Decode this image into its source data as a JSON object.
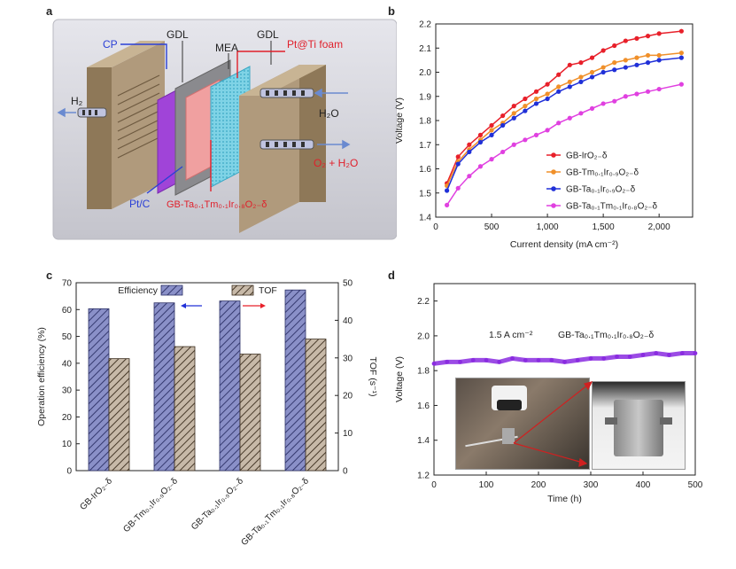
{
  "panels": {
    "a": {
      "letter": "a",
      "labels": {
        "gdl_left": "GDL",
        "mea": "MEA",
        "gdl_right": "GDL",
        "cp": "CP",
        "pt_ti_foam": "Pt@Ti foam",
        "h2": "H₂",
        "h2o": "H₂O",
        "o2_h2o": "O₂ + H₂O",
        "ptc": "Pt/C",
        "catalyst": "GB-Ta₀.₁Tm₀.₁Ir₀.₈O₂₋δ"
      },
      "colors": {
        "background": "#d4d4dc",
        "cp": "#2a3fd6",
        "pt_foam": "#e01f2a"
      }
    },
    "b": {
      "letter": "b"
    },
    "c": {
      "letter": "c"
    },
    "d": {
      "letter": "d",
      "annotation_current": "1.5 A cm⁻²",
      "annotation_catalyst": "GB-Ta₀.₁Tm₀.₁Ir₀.₈O₂₋δ"
    }
  },
  "chart_data": [
    {
      "id": "b",
      "type": "line",
      "xlabel": "Current density (mA cm⁻²)",
      "ylabel": "Voltage (V)",
      "xlim": [
        0,
        2300
      ],
      "ylim": [
        1.4,
        2.2
      ],
      "xticks": [
        0,
        500,
        1000,
        1500,
        2000
      ],
      "xtick_labels": [
        "0",
        "500",
        "1,000",
        "1,500",
        "2,000"
      ],
      "yticks": [
        1.4,
        1.5,
        1.6,
        1.7,
        1.8,
        1.9,
        2.0,
        2.1,
        2.2
      ],
      "ytick_labels": [
        "1.4",
        "1.5",
        "1.6",
        "1.7",
        "1.8",
        "1.9",
        "2.0",
        "2.1",
        "2.2"
      ],
      "legend_position": "bottom-right",
      "x": [
        100,
        200,
        300,
        400,
        500,
        600,
        700,
        800,
        900,
        1000,
        1100,
        1200,
        1300,
        1400,
        1500,
        1600,
        1700,
        1800,
        1900,
        2000,
        2200
      ],
      "series": [
        {
          "name": "GB-IrO₂₋δ",
          "color": "#e8202a",
          "values": [
            1.54,
            1.65,
            1.7,
            1.74,
            1.78,
            1.82,
            1.86,
            1.89,
            1.92,
            1.95,
            1.99,
            2.03,
            2.04,
            2.06,
            2.09,
            2.11,
            2.13,
            2.14,
            2.15,
            2.16,
            2.17
          ]
        },
        {
          "name": "GB-Tm₀.₁Ir₀.₉O₂₋δ",
          "color": "#f0902a",
          "values": [
            1.53,
            1.63,
            1.68,
            1.72,
            1.76,
            1.79,
            1.83,
            1.86,
            1.89,
            1.91,
            1.94,
            1.96,
            1.98,
            2.0,
            2.02,
            2.04,
            2.05,
            2.06,
            2.07,
            2.07,
            2.08
          ]
        },
        {
          "name": "GB-Ta₀.₁Ir₀.₉O₂₋δ",
          "color": "#2030d8",
          "values": [
            1.51,
            1.62,
            1.67,
            1.71,
            1.74,
            1.78,
            1.81,
            1.84,
            1.87,
            1.89,
            1.92,
            1.94,
            1.96,
            1.98,
            2.0,
            2.01,
            2.02,
            2.03,
            2.04,
            2.05,
            2.06
          ]
        },
        {
          "name": "GB-Ta₀.₁Tm₀.₁Ir₀.₈O₂₋δ",
          "color": "#e040e0",
          "values": [
            1.45,
            1.52,
            1.57,
            1.61,
            1.64,
            1.67,
            1.7,
            1.72,
            1.74,
            1.76,
            1.79,
            1.81,
            1.83,
            1.85,
            1.87,
            1.88,
            1.9,
            1.91,
            1.92,
            1.93,
            1.95
          ]
        }
      ]
    },
    {
      "id": "c",
      "type": "bar",
      "ylabel": "Operation efficiency (%)",
      "y2label": "TOF (s⁻¹)",
      "ylim": [
        0,
        70
      ],
      "y2lim": [
        0,
        50
      ],
      "yticks": [
        0,
        10,
        20,
        30,
        40,
        50,
        60,
        70
      ],
      "y2ticks": [
        0,
        10,
        20,
        30,
        40,
        50
      ],
      "categories": [
        "GB-IrO₂₋δ",
        "GB-Tm₀.₁Ir₀.₉O₂₋δ",
        "GB-Ta₀.₁Ir₀.₉O₂₋δ",
        "GB-Ta₀.₁Tm₀.₁Ir₀.₈O₂₋δ"
      ],
      "legend_position": "top-center",
      "series": [
        {
          "name": "Efficiency",
          "axis": "left",
          "color": "#8a90c8",
          "values": [
            60.3,
            62.5,
            63.2,
            67.3
          ]
        },
        {
          "name": "TOF",
          "axis": "right",
          "color": "#c7b9a8",
          "values": [
            29.8,
            33.0,
            31.0,
            35.0
          ]
        }
      ],
      "arrow_colors": {
        "left": "#2030d8",
        "right": "#e8202a"
      }
    },
    {
      "id": "d",
      "type": "line",
      "xlabel": "Time (h)",
      "ylabel": "Voltage (V)",
      "xlim": [
        0,
        500
      ],
      "ylim": [
        1.2,
        2.3
      ],
      "xticks": [
        0,
        100,
        200,
        300,
        400,
        500
      ],
      "yticks": [
        1.2,
        1.4,
        1.6,
        1.8,
        2.0,
        2.2
      ],
      "ytick_labels": [
        "1.2",
        "1.4",
        "1.6",
        "1.8",
        "2.0",
        "2.2"
      ],
      "series": [
        {
          "name": "GB-Ta₀.₁Tm₀.₁Ir₀.₈O₂₋δ",
          "color": "#8a2ce0",
          "x": [
            0,
            25,
            50,
            75,
            100,
            125,
            150,
            175,
            200,
            225,
            250,
            275,
            300,
            325,
            350,
            375,
            400,
            425,
            450,
            475,
            500
          ],
          "values": [
            1.84,
            1.85,
            1.85,
            1.86,
            1.86,
            1.85,
            1.87,
            1.86,
            1.86,
            1.86,
            1.85,
            1.86,
            1.87,
            1.87,
            1.88,
            1.88,
            1.89,
            1.9,
            1.89,
            1.9,
            1.9
          ]
        }
      ]
    }
  ]
}
